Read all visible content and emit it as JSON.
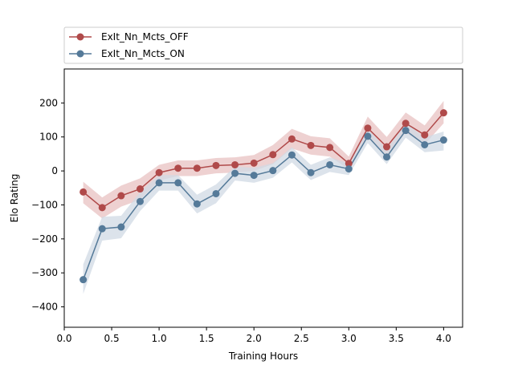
{
  "chart_data": {
    "type": "line",
    "title": "",
    "xlabel": "Training Hours",
    "ylabel": "Elo Rating",
    "xlim": [
      0.0,
      4.2
    ],
    "ylim": [
      -460,
      300
    ],
    "xticks": [
      0.0,
      0.5,
      1.0,
      1.5,
      2.0,
      2.5,
      3.0,
      3.5,
      4.0
    ],
    "xtick_labels": [
      "0.0",
      "0.5",
      "1.0",
      "1.5",
      "2.0",
      "2.5",
      "3.0",
      "3.5",
      "4.0"
    ],
    "yticks": [
      -400,
      -300,
      -200,
      -100,
      0,
      100,
      200
    ],
    "ytick_labels": [
      "−400",
      "−300",
      "−200",
      "−100",
      "0",
      "100",
      "200"
    ],
    "grid": false,
    "legend_position": "top, above plot",
    "x": [
      0.2,
      0.4,
      0.6,
      0.8,
      1.0,
      1.2,
      1.4,
      1.6,
      1.8,
      2.0,
      2.2,
      2.4,
      2.6,
      2.8,
      3.0,
      3.2,
      3.4,
      3.6,
      3.8,
      4.0
    ],
    "series": [
      {
        "name": "ExIt_Nn_Mcts_OFF",
        "color": "#b04a4a",
        "band_color": "#e8c2c2",
        "values": [
          -62,
          -108,
          -73,
          -53,
          -5,
          8,
          8,
          16,
          18,
          23,
          48,
          94,
          75,
          69,
          22,
          126,
          71,
          140,
          106,
          171
        ],
        "lower": [
          -95,
          -140,
          -105,
          -85,
          -28,
          -15,
          -15,
          -7,
          -5,
          0,
          20,
          66,
          48,
          42,
          5,
          100,
          45,
          112,
          78,
          140
        ],
        "upper": [
          -32,
          -78,
          -43,
          -22,
          18,
          31,
          31,
          38,
          40,
          47,
          76,
          124,
          102,
          96,
          42,
          160,
          100,
          172,
          134,
          206
        ]
      },
      {
        "name": "ExIt_Nn_Mcts_ON",
        "color": "#557a99",
        "band_color": "#d0dae4",
        "values": [
          -320,
          -170,
          -165,
          -90,
          -35,
          -35,
          -97,
          -67,
          -7,
          -13,
          1,
          47,
          -5,
          18,
          6,
          102,
          41,
          119,
          77,
          91
        ],
        "lower": [
          -362,
          -205,
          -198,
          -118,
          -58,
          -58,
          -125,
          -95,
          -28,
          -35,
          -20,
          25,
          -27,
          -3,
          -12,
          82,
          20,
          98,
          55,
          60
        ],
        "upper": [
          -275,
          -135,
          -132,
          -62,
          -12,
          -12,
          -70,
          -40,
          13,
          9,
          23,
          70,
          18,
          40,
          22,
          124,
          63,
          140,
          99,
          116
        ]
      }
    ]
  }
}
